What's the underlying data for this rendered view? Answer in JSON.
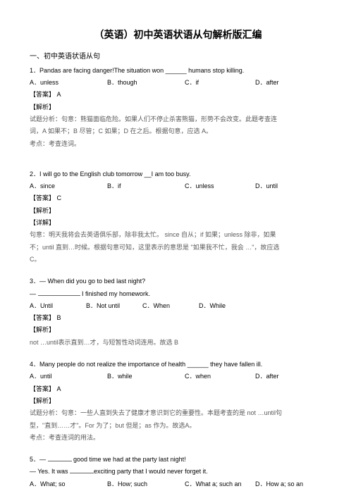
{
  "title": "（英语）初中英语状语从句解析版汇编",
  "section_heading": "一、初中英语状语从句",
  "q1": {
    "num": "1．",
    "stem": "Pandas are facing danger!The situation won ______ humans stop killing.",
    "a": "A．unless",
    "b": "B．though",
    "c": "C．if",
    "d": "D．after",
    "ans_label": "【答案】",
    "ans_val": "A",
    "analysis_label": "【解析】",
    "analysis1": "试题分析：句意：熊猫面临危险。如果人们不停止杀害熊猫，形势不会改变。此题考查连",
    "analysis2": "词，A 如果不；B 尽管；C 如果；D 在之后。根据句意，应选    A。",
    "point": "考点：考查连词。"
  },
  "q2": {
    "num": "2．",
    "stem": "I will go to the English club tomorrow __I am too busy.",
    "a": "A．since",
    "b": "B．if",
    "c": "C．unless",
    "d": "D．until",
    "ans_label": "【答案】",
    "ans_val": "C",
    "analysis_label": "【解析】",
    "detail_label": "【详解】",
    "analysis1": "句意：明天我将会去英语俱乐部，除非我太忙。    since 自从；if 如果；unless 除非，如果",
    "analysis2": "不；until 直到…时候。根据句意可知，这里表示的意思是     \"如果我不忙，我会 …\"，故应选",
    "analysis3": "C。"
  },
  "q3": {
    "num": "3．",
    "stem1": "— When did you go to bed last night?",
    "stem2_pre": "— ",
    "stem2_post": " I finished my homework.",
    "a": "A．Until",
    "b": "B．Not until",
    "c": "C．When",
    "d": "D．While",
    "ans_label": "【答案】",
    "ans_val": "B",
    "analysis_label": "【解析】",
    "analysis1": "not …until表示直到…才，与短暂性动词连用。故选    B"
  },
  "q4": {
    "num": "4．",
    "stem": "Many people do not realize the importance of health ______ they have fallen ill.",
    "a": "A．until",
    "b": "B．while",
    "c": "C．when",
    "d": "D．after",
    "ans_label": "【答案】",
    "ans_val": "A",
    "analysis_label": "【解析】",
    "analysis1": "试题分析：句意：一些人直到失去了健康才意识到它的重要性。本题考查的是        not …until句",
    "analysis2": "型，\"直到……才\"。For 为了；but 但是；as 作为。故选A。",
    "point": "考点：考查连词的用法。"
  },
  "q5": {
    "num": "5．",
    "stem1_pre": "— ",
    "stem1_post": " good time we had at the party last night!",
    "stem2_pre": "— Yes. It was ",
    "stem2_post": "exciting party that I would never forget it.",
    "a": "A．What; so",
    "b": "B．How; such",
    "c": "C．What a; such an",
    "d": "D．How a; so an"
  }
}
